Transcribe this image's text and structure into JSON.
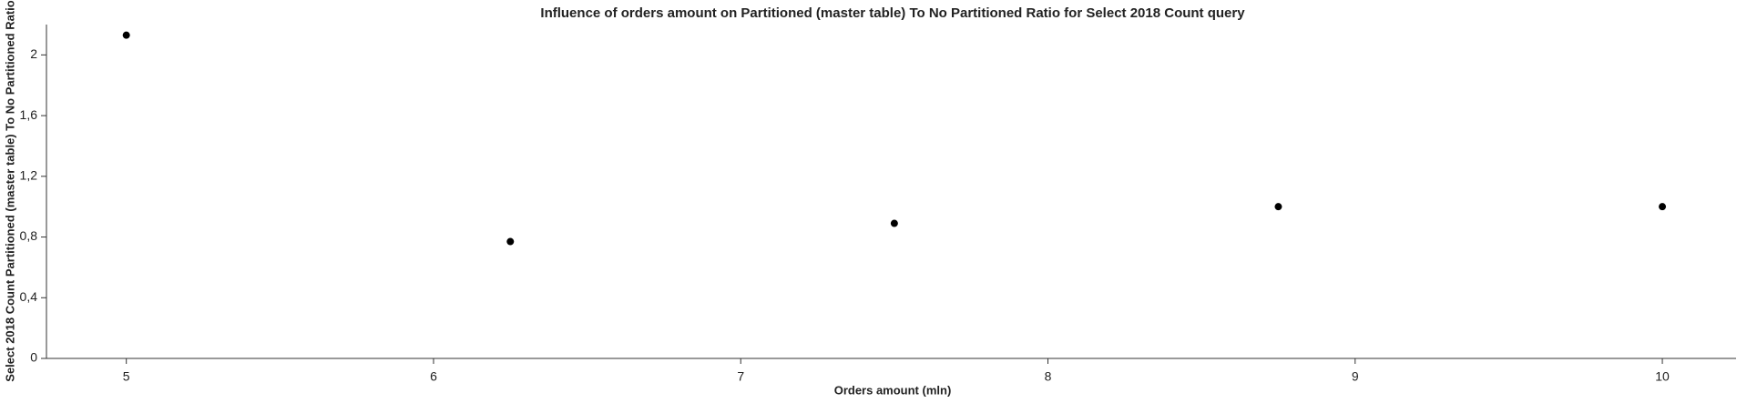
{
  "chart_data": {
    "type": "scatter",
    "title": "Influence of orders amount on Partitioned (master table) To No Partitioned Ratio for Select 2018 Count query",
    "x_label": "Orders amount (mln)",
    "y_label": "Select 2018 Count Partitioned (master table) To No Partitioned Ratio",
    "x": [
      5,
      6.25,
      7.5,
      8.75,
      10
    ],
    "values": [
      2.13,
      0.77,
      0.89,
      1.0,
      1.0
    ],
    "color": "#000000",
    "xlim": [
      4.74,
      10.24
    ],
    "ylim": [
      0,
      2.2
    ],
    "xticks": [
      5,
      6,
      7,
      8,
      9,
      10
    ],
    "yticks": [
      0,
      {
        "value": 0.4,
        "label": "0,4"
      },
      {
        "value": 0.8,
        "label": "0,8"
      },
      {
        "value": 1.2,
        "label": "1,2"
      },
      {
        "value": 1.6,
        "label": "1,6"
      },
      2
    ],
    "grid": false
  }
}
